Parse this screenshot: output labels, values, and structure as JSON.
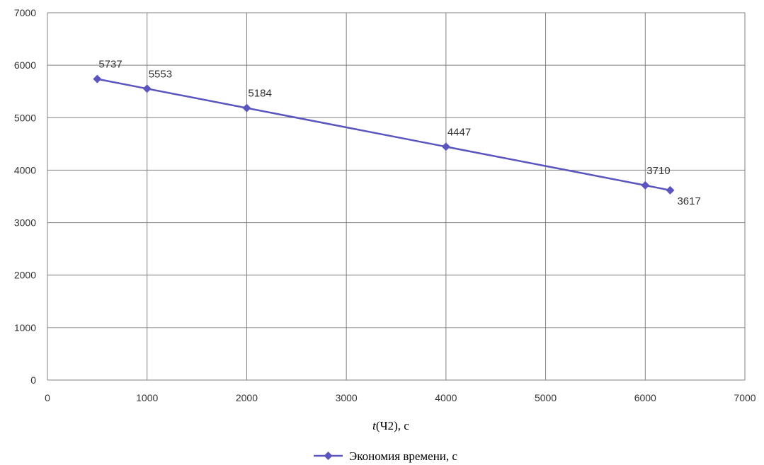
{
  "chart_data": {
    "type": "line",
    "xlabel": "t(Ч2), с",
    "xlabel_italic": "t",
    "xlabel_rest": "(Ч2), с",
    "ylabel": "",
    "xlim": [
      0,
      7000
    ],
    "ylim": [
      0,
      7000
    ],
    "x_ticks": [
      0,
      1000,
      2000,
      3000,
      4000,
      5000,
      6000,
      7000
    ],
    "y_ticks": [
      0,
      1000,
      2000,
      3000,
      4000,
      5000,
      6000,
      7000
    ],
    "grid": true,
    "legend_position": "bottom",
    "series": [
      {
        "name": "Экономия времени, с",
        "color": "#5B55C0",
        "marker": "diamond",
        "x": [
          500,
          1000,
          2000,
          4000,
          6000,
          6250
        ],
        "y": [
          5737,
          5553,
          5184,
          4447,
          3710,
          3617
        ],
        "labels": [
          "5737",
          "5553",
          "5184",
          "4447",
          "3710",
          "3617"
        ]
      }
    ]
  }
}
